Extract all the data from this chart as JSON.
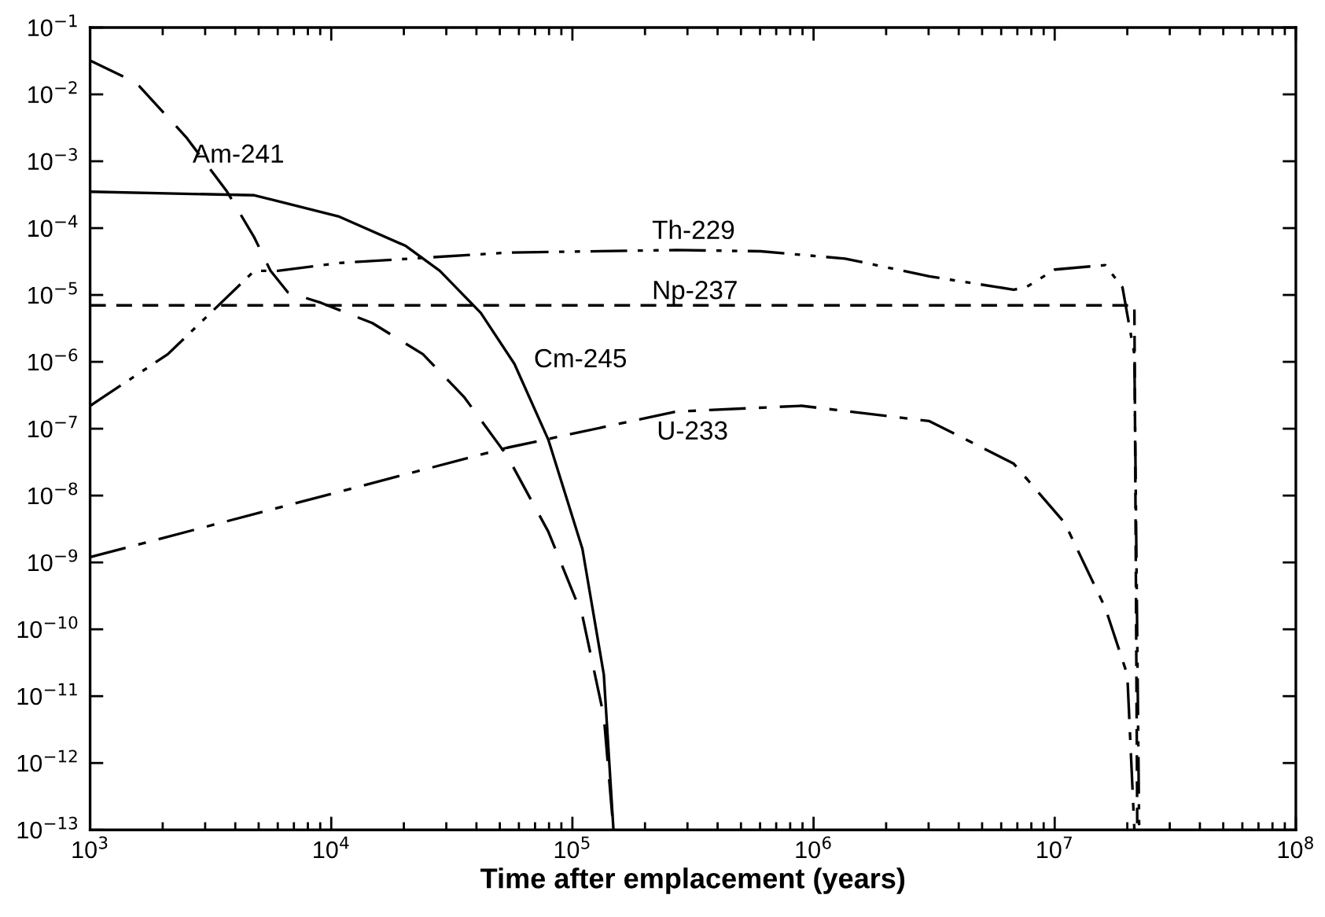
{
  "chart_data": {
    "type": "line",
    "xlabel": "Time after emplacement (years)",
    "log": "xy",
    "grid": false,
    "legend": false,
    "marker": "none",
    "xlim": [
      1000,
      100000000
    ],
    "ylim": [
      1e-13,
      0.1
    ],
    "xticks": [
      {
        "value": 1000,
        "label": "10$^{3}$"
      },
      {
        "value": 10000,
        "label": "10$^{4}$"
      },
      {
        "value": 100000,
        "label": "10$^{5}$"
      },
      {
        "value": 1000000,
        "label": "10$^{6}$"
      },
      {
        "value": 10000000,
        "label": "10$^{7}$"
      },
      {
        "value": 100000000,
        "label": "10$^{8}$"
      }
    ],
    "yticks": [
      {
        "value": 1e-13,
        "label": "10$^{−13}$"
      },
      {
        "value": 1e-12,
        "label": "10$^{−12}$"
      },
      {
        "value": 1e-11,
        "label": "10$^{−11}$"
      },
      {
        "value": 1e-10,
        "label": "10$^{−10}$"
      },
      {
        "value": 1e-09,
        "label": "10$^{−9}$"
      },
      {
        "value": 1e-08,
        "label": "10$^{−8}$"
      },
      {
        "value": 1e-07,
        "label": "10$^{−7}$"
      },
      {
        "value": 1e-06,
        "label": "10$^{−6}$"
      },
      {
        "value": 1e-05,
        "label": "10$^{−5}$"
      },
      {
        "value": 0.0001,
        "label": "10$^{−4}$"
      },
      {
        "value": 0.001,
        "label": "10$^{−3}$"
      },
      {
        "value": 0.01,
        "label": "10$^{−2}$"
      },
      {
        "value": 0.1,
        "label": "10$^{−1}$"
      }
    ],
    "series": [
      {
        "name": "Am-241",
        "color": "#000000",
        "line_style": "dashed",
        "x": [
          1000,
          1550,
          2500,
          3700,
          4800,
          5600,
          6600,
          9100,
          14800,
          24000,
          35500,
          53700,
          79400,
          110000,
          135000,
          148000
        ],
        "values": [
          0.032,
          0.015,
          0.0023,
          0.00035,
          7.2e-05,
          2.3e-05,
          1.1e-05,
          7.6e-06,
          3.8e-06,
          1.3e-06,
          3e-07,
          3.9e-08,
          2.9e-09,
          1.6e-10,
          5e-12,
          1e-13
        ]
      },
      {
        "name": "Cm-245",
        "color": "#000000",
        "line_style": "solid",
        "x": [
          1000,
          4800,
          10700,
          20400,
          28200,
          41700,
          57500,
          79400,
          110000,
          135000,
          148000
        ],
        "values": [
          0.00035,
          0.00031,
          0.00015,
          5.4e-05,
          2.3e-05,
          5.4e-06,
          9.3e-07,
          6.9e-08,
          1.6e-09,
          2.1e-11,
          1e-13
        ]
      },
      {
        "name": "Np-237",
        "color": "#000000",
        "line_style": "shortdash",
        "x": [
          1000,
          21400000,
          22000000
        ],
        "values": [
          7e-06,
          7e-06,
          1e-13
        ]
      },
      {
        "name": "Th-229",
        "color": "#000000",
        "line_style": "dashdotdot",
        "x": [
          1000,
          2100,
          4800,
          6000,
          10700,
          53700,
          269000,
          603000,
          1350000,
          3020000,
          6760000,
          7590000,
          10000000,
          16200000,
          19100000,
          21400000,
          22400000
        ],
        "values": [
          2.2e-07,
          1.3e-06,
          2.3e-05,
          2.3e-05,
          3e-05,
          4.3e-05,
          4.7e-05,
          4.5e-05,
          3.5e-05,
          1.9e-05,
          1.2e-05,
          1.3e-05,
          2.4e-05,
          2.8e-05,
          1.3e-05,
          1.3e-06,
          1e-13
        ]
      },
      {
        "name": "U-233",
        "color": "#000000",
        "line_style": "dashdot",
        "x": [
          1000,
          53700,
          269000,
          891000,
          3020000,
          6760000,
          11000000,
          16200000,
          20000000,
          21400000
        ],
        "values": [
          1.2e-09,
          5.2e-08,
          1.8e-07,
          2.2e-07,
          1.3e-07,
          3e-08,
          3.9e-09,
          2.1e-10,
          2.1e-11,
          1e-13
        ]
      }
    ]
  }
}
